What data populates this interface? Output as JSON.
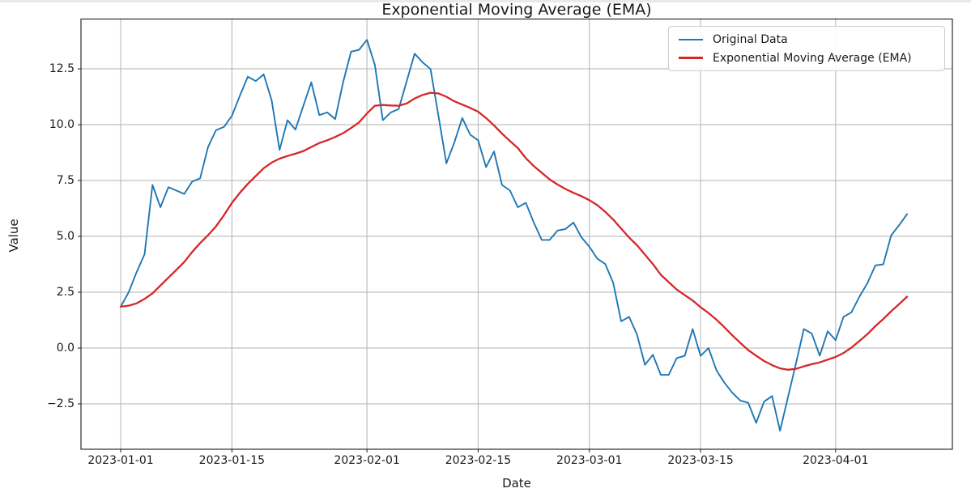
{
  "figure": {
    "title": "Exponential Moving Average (EMA)",
    "xlabel": "Date",
    "ylabel": "Value"
  },
  "legend": {
    "position": "upper right",
    "entries": [
      {
        "label": "Original Data",
        "color": "#1f77b4",
        "line_width": 2
      },
      {
        "label": "Exponential Moving Average (EMA)",
        "color": "#d62728",
        "line_width": 2.4
      }
    ]
  },
  "chart_data": {
    "type": "line",
    "title": "Exponential Moving Average (EMA)",
    "xlabel": "Date",
    "ylabel": "Value",
    "grid": true,
    "legend_position": "upper right",
    "x_start": "2023-01-01",
    "x_step": "1 day",
    "n_points": 100,
    "xlim_days": [
      -5,
      104.7
    ],
    "ylim": [
      -4.53,
      14.73
    ],
    "x_ticks": [
      {
        "day": 0,
        "label": "2023-01-01"
      },
      {
        "day": 14,
        "label": "2023-01-15"
      },
      {
        "day": 31,
        "label": "2023-02-01"
      },
      {
        "day": 45,
        "label": "2023-02-15"
      },
      {
        "day": 59,
        "label": "2023-03-01"
      },
      {
        "day": 73,
        "label": "2023-03-15"
      },
      {
        "day": 90,
        "label": "2023-04-01"
      }
    ],
    "y_ticks": [
      {
        "value": 12.5,
        "label": "12.5"
      },
      {
        "value": 10.0,
        "label": "10.0"
      },
      {
        "value": 7.5,
        "label": "7.5"
      },
      {
        "value": 5.0,
        "label": "5.0"
      },
      {
        "value": 2.5,
        "label": "2.5"
      },
      {
        "value": 0.0,
        "label": "0.0"
      },
      {
        "value": -2.5,
        "label": "−2.5"
      }
    ],
    "series": [
      {
        "name": "Original Data",
        "color": "#1f77b4",
        "width": 1.9,
        "values": [
          1.85,
          2.5,
          3.4,
          4.2,
          7.3,
          6.3,
          7.2,
          7.05,
          6.9,
          7.45,
          7.6,
          9.0,
          9.75,
          9.9,
          10.4,
          11.3,
          12.15,
          11.95,
          12.25,
          11.1,
          8.87,
          10.2,
          9.78,
          10.85,
          11.9,
          10.43,
          10.55,
          10.25,
          11.9,
          13.27,
          13.35,
          13.8,
          12.67,
          10.2,
          10.55,
          10.7,
          11.95,
          13.18,
          12.79,
          12.49,
          10.4,
          8.27,
          9.2,
          10.3,
          9.55,
          9.3,
          8.1,
          8.8,
          7.3,
          7.05,
          6.3,
          6.5,
          5.62,
          4.84,
          4.84,
          5.26,
          5.33,
          5.62,
          4.96,
          4.54,
          4.0,
          3.76,
          2.92,
          1.2,
          1.4,
          0.6,
          -0.75,
          -0.3,
          -1.2,
          -1.2,
          -0.45,
          -0.35,
          0.85,
          -0.35,
          0.0,
          -1.0,
          -1.55,
          -2.0,
          -2.35,
          -2.45,
          -3.35,
          -2.4,
          -2.15,
          -3.7,
          -2.2,
          -0.7,
          0.85,
          0.65,
          -0.34,
          0.75,
          0.35,
          1.4,
          1.6,
          2.3,
          2.9,
          3.7,
          3.75,
          5.05,
          5.5,
          6.0
        ]
      },
      {
        "name": "Exponential Moving Average (EMA)",
        "color": "#d62728",
        "width": 2.3,
        "values": [
          1.85,
          1.9,
          2.0,
          2.2,
          2.45,
          2.8,
          3.15,
          3.5,
          3.85,
          4.3,
          4.7,
          5.05,
          5.45,
          5.95,
          6.5,
          6.95,
          7.35,
          7.7,
          8.05,
          8.3,
          8.48,
          8.6,
          8.7,
          8.82,
          9.0,
          9.18,
          9.3,
          9.45,
          9.62,
          9.85,
          10.1,
          10.5,
          10.85,
          10.88,
          10.86,
          10.85,
          10.95,
          11.17,
          11.33,
          11.43,
          11.4,
          11.25,
          11.05,
          10.9,
          10.75,
          10.58,
          10.3,
          9.97,
          9.6,
          9.27,
          8.95,
          8.5,
          8.15,
          7.85,
          7.55,
          7.32,
          7.12,
          6.95,
          6.8,
          6.62,
          6.4,
          6.1,
          5.75,
          5.35,
          4.95,
          4.6,
          4.18,
          3.76,
          3.28,
          2.95,
          2.62,
          2.37,
          2.13,
          1.83,
          1.57,
          1.27,
          0.93,
          0.57,
          0.23,
          -0.09,
          -0.34,
          -0.58,
          -0.76,
          -0.91,
          -0.97,
          -0.93,
          -0.82,
          -0.72,
          -0.64,
          -0.52,
          -0.4,
          -0.22,
          0.02,
          0.32,
          0.62,
          0.98,
          1.3,
          1.65,
          1.97,
          2.3
        ]
      }
    ],
    "style": {
      "grid_color": "#b2b2b2",
      "spine_color": "#1a1a1a",
      "background": "#ffffff"
    }
  }
}
